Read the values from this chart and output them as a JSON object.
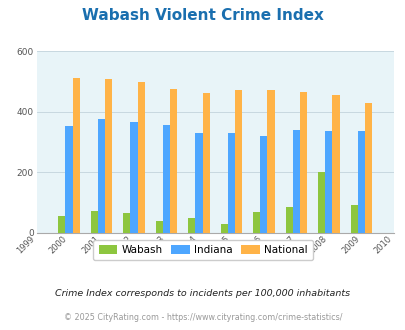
{
  "title": "Wabash Violent Crime Index",
  "years": [
    1999,
    2000,
    2001,
    2002,
    2003,
    2004,
    2005,
    2006,
    2007,
    2008,
    2009,
    2010
  ],
  "data_years": [
    2000,
    2001,
    2002,
    2003,
    2004,
    2005,
    2006,
    2007,
    2008,
    2009
  ],
  "wabash": [
    55,
    70,
    65,
    38,
    48,
    30,
    68,
    85,
    200,
    90
  ],
  "indiana": [
    352,
    375,
    365,
    355,
    328,
    328,
    318,
    338,
    335,
    335
  ],
  "national": [
    510,
    508,
    498,
    476,
    463,
    472,
    473,
    466,
    456,
    428
  ],
  "wabash_color": "#8dc63f",
  "indiana_color": "#4da6ff",
  "national_color": "#ffb347",
  "bg_color": "#e8f4f8",
  "title_color": "#1a6faf",
  "ylabel_max": 600,
  "yticks": [
    0,
    200,
    400,
    600
  ],
  "subtitle": "Crime Index corresponds to incidents per 100,000 inhabitants",
  "footer": "© 2025 CityRating.com - https://www.cityrating.com/crime-statistics/",
  "legend_labels": [
    "Wabash",
    "Indiana",
    "National"
  ],
  "bar_width": 0.22
}
